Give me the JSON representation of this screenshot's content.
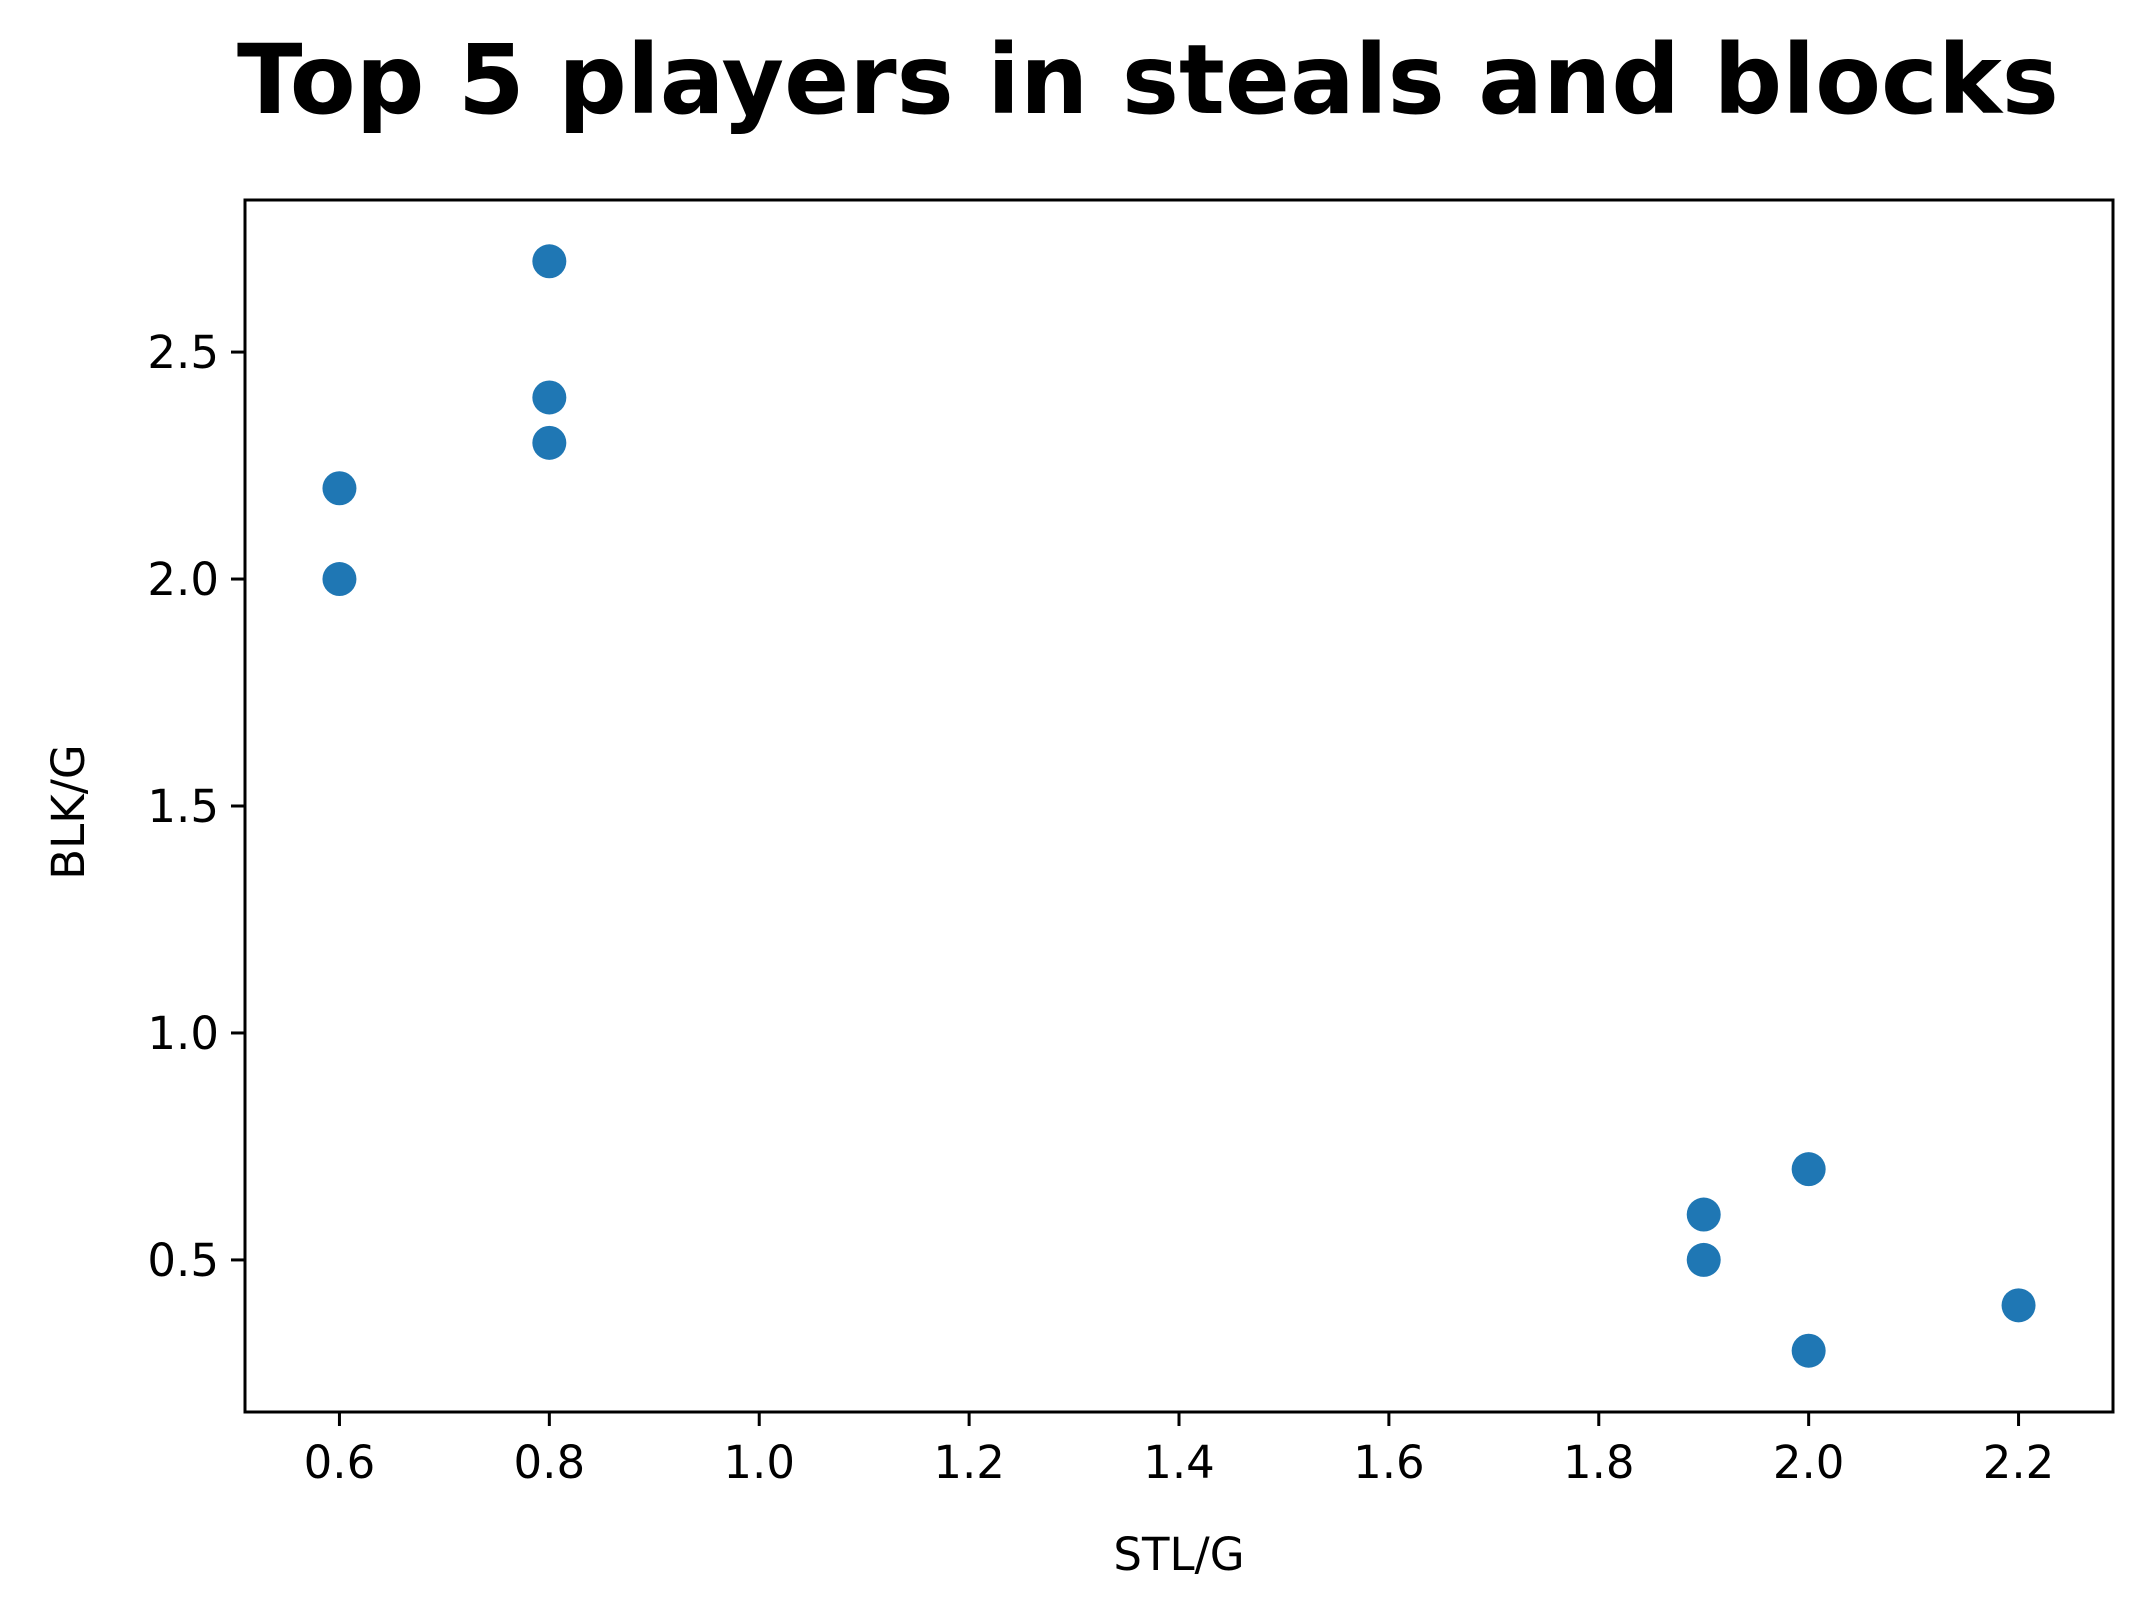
{
  "chart_data": {
    "type": "scatter",
    "title": "Top 5 players in steals and blocks",
    "xlabel": "STL/G",
    "ylabel": "BLK/G",
    "xlim": [
      0.51,
      2.29
    ],
    "ylim": [
      0.165,
      2.835
    ],
    "xticks": [
      "0.6",
      "0.8",
      "1.0",
      "1.2",
      "1.4",
      "1.6",
      "1.8",
      "2.0",
      "2.2"
    ],
    "yticks": [
      "0.5",
      "1.0",
      "1.5",
      "2.0",
      "2.5"
    ],
    "grid": false,
    "marker_color": "#1f77b4",
    "points": [
      {
        "x": 0.6,
        "y": 2.2
      },
      {
        "x": 0.6,
        "y": 2.0
      },
      {
        "x": 0.8,
        "y": 2.7
      },
      {
        "x": 0.8,
        "y": 2.4
      },
      {
        "x": 0.8,
        "y": 2.3
      },
      {
        "x": 1.9,
        "y": 0.6
      },
      {
        "x": 1.9,
        "y": 0.5
      },
      {
        "x": 2.0,
        "y": 0.7
      },
      {
        "x": 2.0,
        "y": 0.3
      },
      {
        "x": 2.2,
        "y": 0.4
      }
    ]
  }
}
